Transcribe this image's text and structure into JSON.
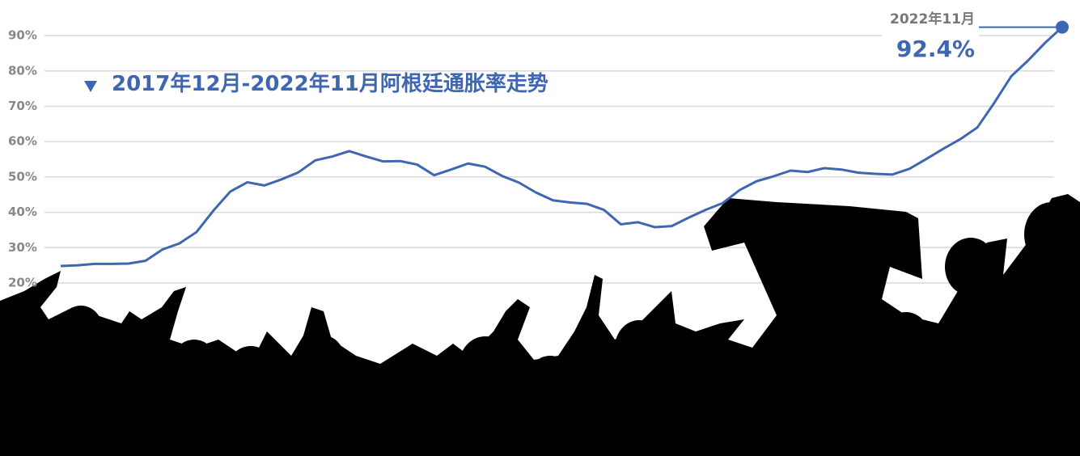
{
  "chart_data": {
    "type": "line",
    "title": "2017年12月-2022年11月阿根廷通胀率走势",
    "categories": [
      null,
      null,
      null,
      null,
      null,
      null,
      null,
      null,
      null,
      null,
      null,
      null,
      null,
      null,
      null,
      null,
      null,
      null,
      null,
      null,
      null,
      null,
      null,
      null,
      null,
      null,
      null,
      null,
      null,
      null,
      null,
      null,
      null,
      null,
      null,
      null,
      null,
      null,
      null,
      null,
      null,
      null,
      null,
      null,
      null,
      null,
      null,
      null,
      null,
      null,
      null,
      null,
      null,
      null,
      null,
      null,
      null,
      null,
      null,
      "2022年11月"
    ],
    "values": [
      24.8,
      25.0,
      25.4,
      25.4,
      25.5,
      26.3,
      29.5,
      31.2,
      34.4,
      40.5,
      45.9,
      48.5,
      47.6,
      49.3,
      51.3,
      54.7,
      55.8,
      57.3,
      55.8,
      54.4,
      54.5,
      53.5,
      50.5,
      52.1,
      53.8,
      52.9,
      50.3,
      48.4,
      45.6,
      43.4,
      42.8,
      42.4,
      40.7,
      36.6,
      37.2,
      35.8,
      36.1,
      38.5,
      40.7,
      42.6,
      46.3,
      48.8,
      50.2,
      51.8,
      51.4,
      52.5,
      52.1,
      51.2,
      50.9,
      50.7,
      52.3,
      55.1,
      58.0,
      60.7,
      64.0,
      71.0,
      78.5,
      83.0,
      88.0,
      92.4
    ],
    "value_labels": [
      null,
      null,
      null,
      null,
      null,
      null,
      null,
      null,
      null,
      null,
      null,
      null,
      null,
      null,
      null,
      null,
      null,
      null,
      null,
      null,
      null,
      null,
      null,
      null,
      null,
      null,
      null,
      null,
      null,
      null,
      null,
      null,
      null,
      null,
      null,
      null,
      null,
      null,
      null,
      null,
      null,
      null,
      null,
      null,
      null,
      null,
      null,
      null,
      null,
      null,
      null,
      null,
      null,
      null,
      null,
      null,
      null,
      null,
      null,
      "92.4%"
    ],
    "color": "#3f67b1",
    "ylim": [
      20,
      95
    ],
    "yticks": [
      {
        "value": 20,
        "label": "20%"
      },
      {
        "value": 30,
        "label": "30%"
      },
      {
        "value": 40,
        "label": "40%"
      },
      {
        "value": 50,
        "label": "50%"
      },
      {
        "value": 60,
        "label": "60%"
      },
      {
        "value": 70,
        "label": "70%"
      },
      {
        "value": 80,
        "label": "80%"
      },
      {
        "value": 90,
        "label": "90%"
      }
    ],
    "grid": true
  }
}
